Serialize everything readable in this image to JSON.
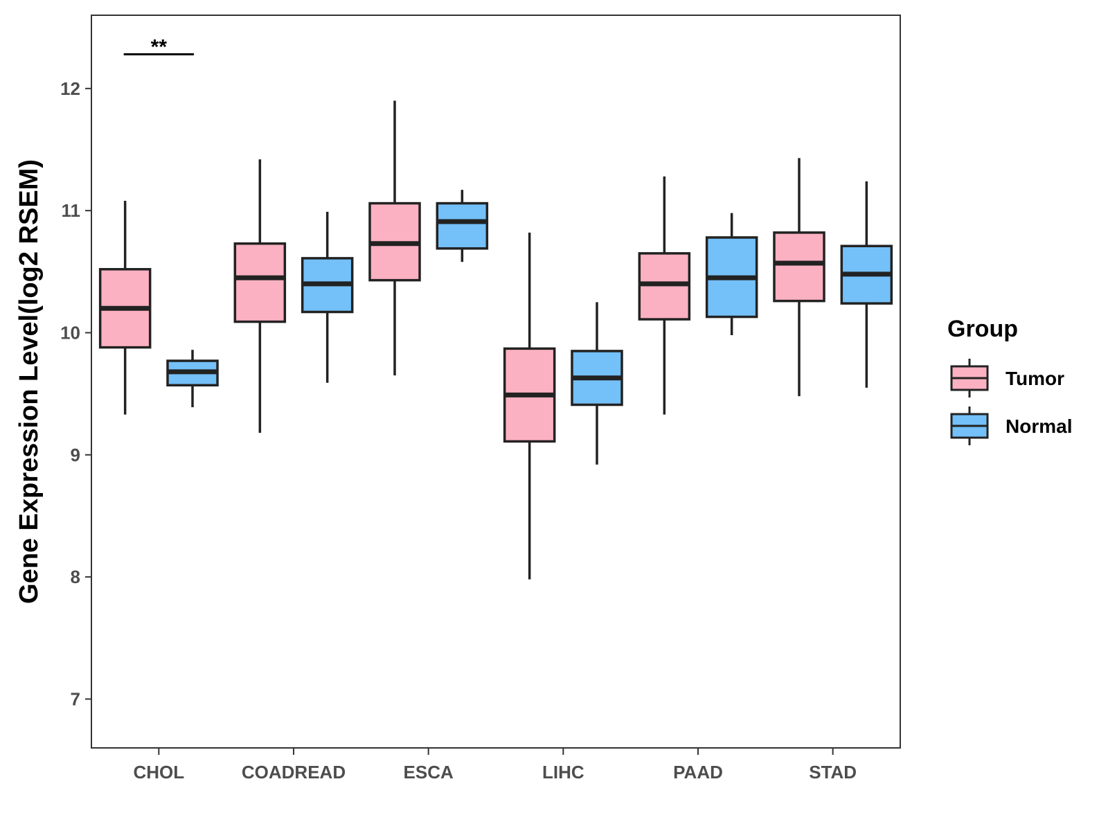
{
  "chart_data": {
    "type": "boxplot",
    "title": "",
    "xlabel": "",
    "ylabel": "Gene Expression Level(log2 RSEM)",
    "ylim": [
      6.6,
      12.6
    ],
    "yticks": [
      7,
      8,
      9,
      10,
      11,
      12
    ],
    "categories": [
      "CHOL",
      "COADREAD",
      "ESCA",
      "LIHC",
      "PAAD",
      "STAD"
    ],
    "legend": {
      "title": "Group",
      "position": "right"
    },
    "series": [
      {
        "name": "Tumor",
        "color": "#FBB1C2",
        "boxes": [
          {
            "min": 9.33,
            "q1": 9.88,
            "median": 10.2,
            "q3": 10.52,
            "max": 11.08
          },
          {
            "min": 9.18,
            "q1": 10.09,
            "median": 10.45,
            "q3": 10.73,
            "max": 11.42
          },
          {
            "min": 9.65,
            "q1": 10.43,
            "median": 10.73,
            "q3": 11.06,
            "max": 11.9
          },
          {
            "min": 7.98,
            "q1": 9.11,
            "median": 9.49,
            "q3": 9.87,
            "max": 10.82
          },
          {
            "min": 9.33,
            "q1": 10.11,
            "median": 10.4,
            "q3": 10.65,
            "max": 11.28
          },
          {
            "min": 9.48,
            "q1": 10.26,
            "median": 10.57,
            "q3": 10.82,
            "max": 11.43
          }
        ]
      },
      {
        "name": "Normal",
        "color": "#74C0F8",
        "boxes": [
          {
            "min": 9.39,
            "q1": 9.57,
            "median": 9.68,
            "q3": 9.77,
            "max": 9.86
          },
          {
            "min": 9.59,
            "q1": 10.17,
            "median": 10.4,
            "q3": 10.61,
            "max": 10.99
          },
          {
            "min": 10.58,
            "q1": 10.69,
            "median": 10.91,
            "q3": 11.06,
            "max": 11.17
          },
          {
            "min": 8.92,
            "q1": 9.41,
            "median": 9.63,
            "q3": 9.85,
            "max": 10.25
          },
          {
            "min": 9.98,
            "q1": 10.13,
            "median": 10.45,
            "q3": 10.78,
            "max": 10.98
          },
          {
            "min": 9.55,
            "q1": 10.24,
            "median": 10.48,
            "q3": 10.71,
            "max": 11.24
          }
        ]
      }
    ],
    "annotations": [
      {
        "category": "CHOL",
        "text": "**",
        "y": 12.28
      }
    ]
  }
}
